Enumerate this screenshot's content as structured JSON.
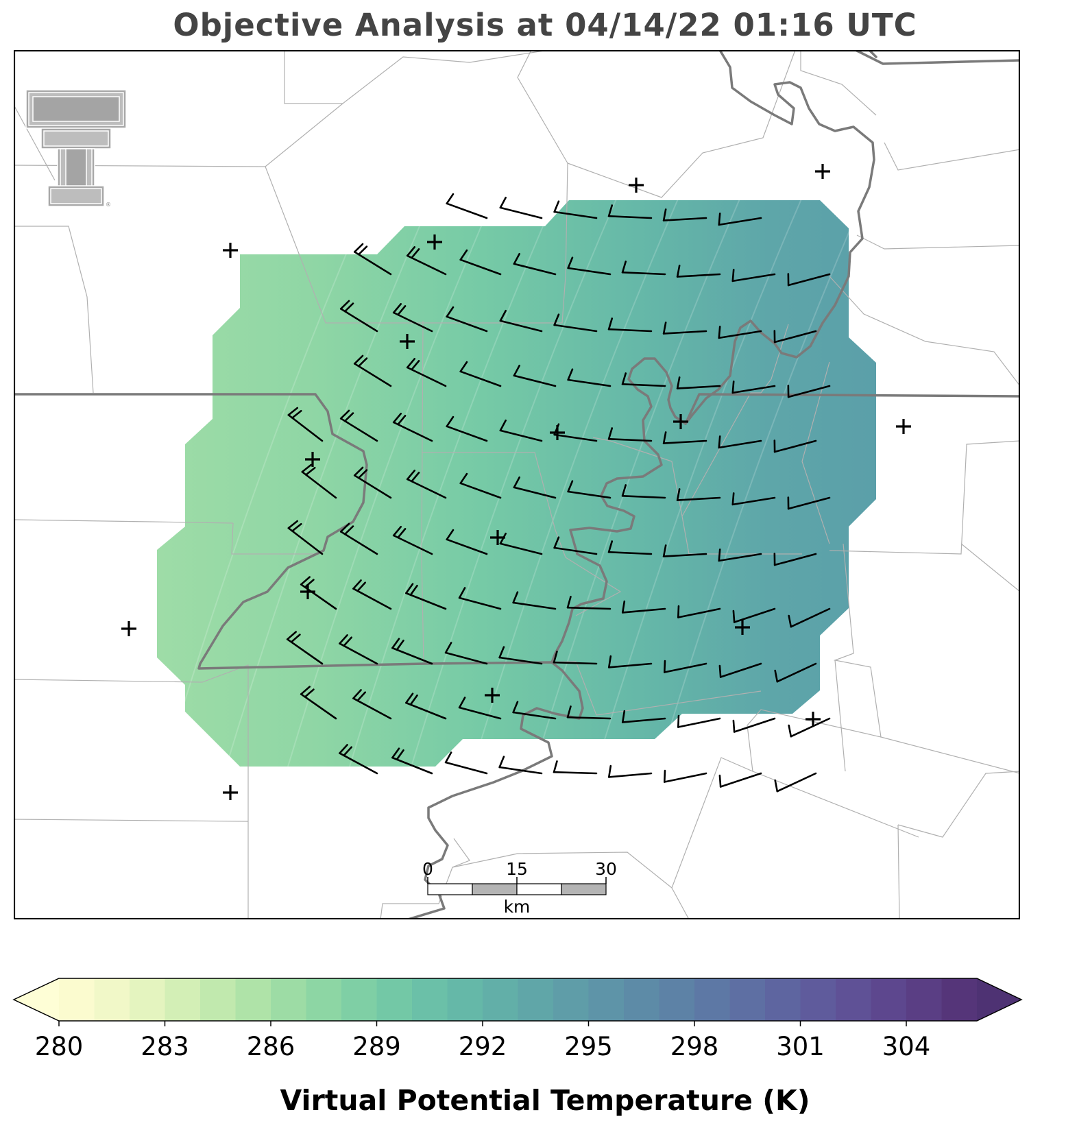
{
  "title": "Objective Analysis at 04/14/22 01:16 UTC",
  "colorbar": {
    "label": "Virtual Potential Temperature (K)",
    "min": 280,
    "max": 306,
    "step": 1,
    "ticks": [
      "280",
      "283",
      "286",
      "289",
      "292",
      "295",
      "298",
      "301",
      "304"
    ],
    "colors": [
      "#fbfbcf",
      "#f1f8c8",
      "#e4f4bf",
      "#d3efb6",
      "#c1e9ae",
      "#afe3a8",
      "#9ddca5",
      "#8dd6a4",
      "#7fcfa5",
      "#73c8a6",
      "#6bc0a8",
      "#65b8a8",
      "#62afa8",
      "#60a6a8",
      "#5f9da8",
      "#5e94a8",
      "#5d8ba7",
      "#5d82a6",
      "#5d78a5",
      "#5e6fa3",
      "#5e65a0",
      "#5f5b9c",
      "#5f5196",
      "#5d478e",
      "#5a3e84",
      "#553579"
    ],
    "under_color": "#fefed6",
    "over_color": "#4e3273"
  },
  "scale_bar": {
    "labels": [
      "0",
      "15",
      "30"
    ],
    "unit": "km"
  },
  "legend": {
    "logo": "texas-tech-double-t-logo"
  },
  "station_marker": "+",
  "chart_data": {
    "type": "filled-contour-map",
    "variable": "Virtual Potential Temperature",
    "units": "K",
    "field_range": [
      285,
      294
    ],
    "gradient": "increasing west to east",
    "grid_columns": 12,
    "grid_rows": 10,
    "stations": 17,
    "wind_barbs": "mostly 10-knot barbs; northwesterly in west, west-southwesterly in east",
    "missing_barb_text": ""
  }
}
